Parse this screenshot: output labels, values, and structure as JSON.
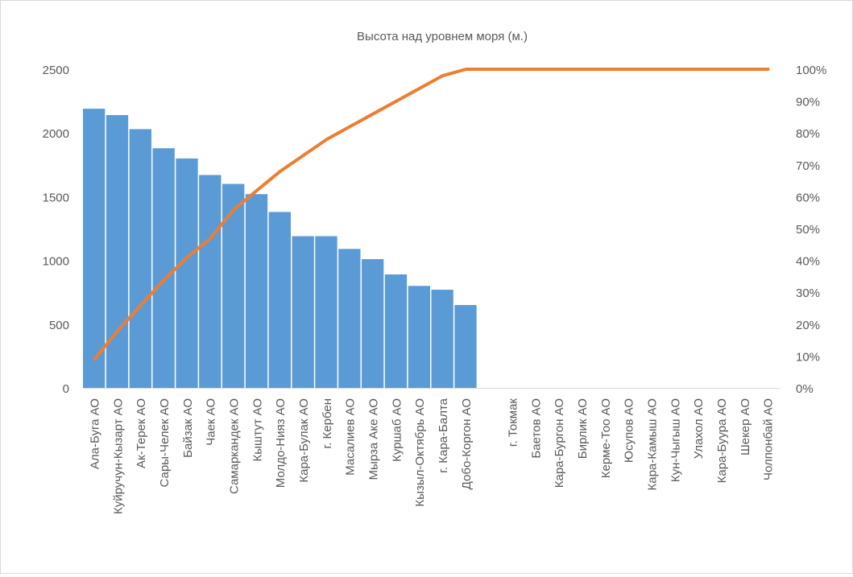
{
  "chart_data": {
    "type": "bar",
    "title": "Высота над уровнем моря (м.)",
    "categories": [
      "Ала-Буга АО",
      "Куйручун-Кызарт АО",
      "Ак-Терек АО",
      "Сары-Челек АО",
      "Байзак АО",
      "Чаек АО",
      "Самаркандек АО",
      "Кыштут АО",
      "Молдо-Нияз АО",
      "Кара-Булак АО",
      "г. Кербен",
      "Масалиев АО",
      "Мырза Аке АО",
      "Куршаб АО",
      "Кызыл-Октябрь АО",
      "г. Кара-Балта",
      "Добо-Коргон АО",
      "",
      "г. Токмак",
      "Баетов АО",
      "Кара-Бургон АО",
      "Бирлик АО",
      "Керме-Тоо АО",
      "Юсупов АО",
      "Кара-Камыш АО",
      "Кун-Чыгыш АО",
      "Улахол АО",
      "Кара-Буура АО",
      "Шекер АО",
      "Чолпонбай АО"
    ],
    "series": [
      {
        "type": "bar",
        "axis": "left",
        "color": "#5b9bd5",
        "values": [
          2190,
          2140,
          2030,
          1880,
          1800,
          1670,
          1600,
          1520,
          1380,
          1190,
          1190,
          1090,
          1010,
          890,
          800,
          770,
          650,
          null,
          null,
          null,
          null,
          null,
          null,
          null,
          null,
          null,
          null,
          null,
          null,
          null
        ]
      },
      {
        "type": "line",
        "axis": "right",
        "color": "#ed7d31",
        "values": [
          0.09,
          0.18,
          0.26,
          0.34,
          0.41,
          0.47,
          0.56,
          0.62,
          0.68,
          0.73,
          0.78,
          0.82,
          0.86,
          0.9,
          0.94,
          0.98,
          1.0,
          1.0,
          1.0,
          1.0,
          1.0,
          1.0,
          1.0,
          1.0,
          1.0,
          1.0,
          1.0,
          1.0,
          1.0,
          1.0
        ]
      }
    ],
    "ylim_left": [
      0,
      2500
    ],
    "yticks_left": [
      "0",
      "500",
      "1000",
      "1500",
      "2000",
      "2500"
    ],
    "ylim_right": [
      0,
      1
    ],
    "yticks_right": [
      "0%",
      "10%",
      "20%",
      "30%",
      "40%",
      "50%",
      "60%",
      "70%",
      "80%",
      "90%",
      "100%"
    ],
    "grid": false,
    "legend": "none"
  }
}
